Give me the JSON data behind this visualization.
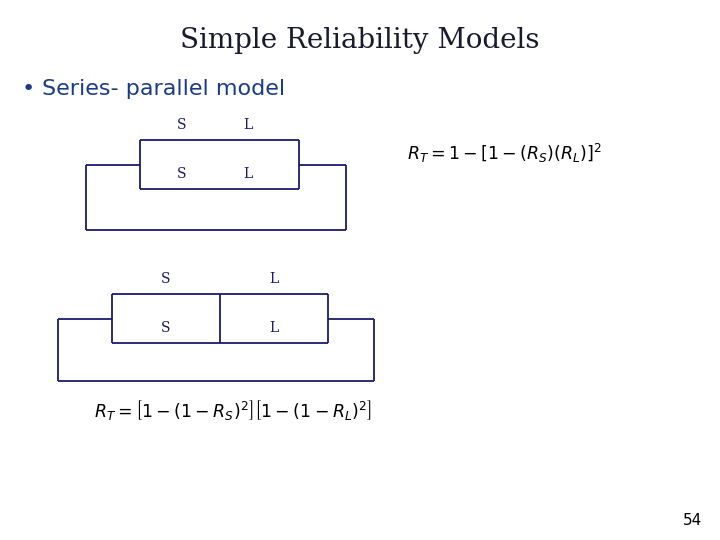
{
  "title": "Simple Reliability Models",
  "title_fontsize": 20,
  "title_color": "#1a1a2e",
  "bullet_text": "Series- parallel model",
  "bullet_fontsize": 16,
  "bullet_color": "#1a3a8a",
  "formula1": "$R_T = 1-\\left[1-(R_S)(R_L)\\right]^2$",
  "formula2": "$R_T = \\left[1-(1-R_S)^2\\right]\\left[1-(1-R_L)^2\\right]$",
  "page_number": "54",
  "diagram_color": "#1a1a6e",
  "bg_color": "#ffffff",
  "label_S": "S",
  "label_L": "L"
}
